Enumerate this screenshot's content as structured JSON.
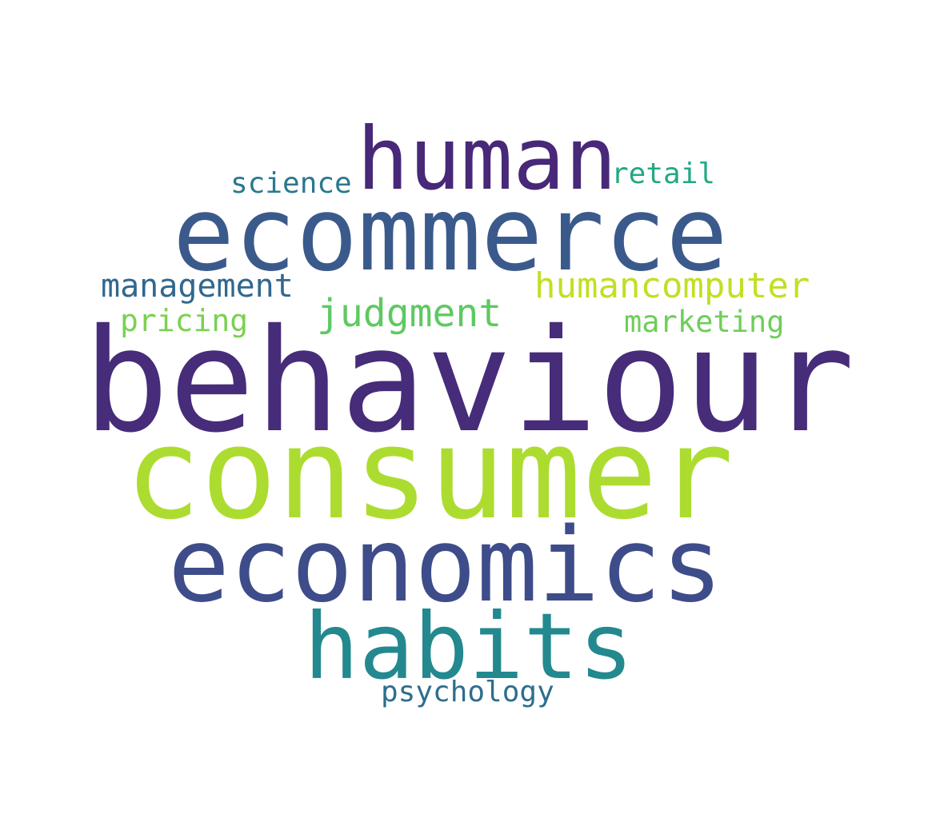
{
  "words": [
    {
      "key": "behaviour",
      "text": "behaviour",
      "color": "#472c7a"
    },
    {
      "key": "consumer",
      "text": "consumer",
      "color": "#addc30"
    },
    {
      "key": "ecommerce",
      "text": "ecommerce",
      "color": "#3b5a8c"
    },
    {
      "key": "economics",
      "text": "economics",
      "color": "#3e4c8a"
    },
    {
      "key": "human",
      "text": "human",
      "color": "#482878"
    },
    {
      "key": "habits",
      "text": "habits",
      "color": "#23898e"
    },
    {
      "key": "judgment",
      "text": "judgment",
      "color": "#5ec962"
    },
    {
      "key": "humancomputer",
      "text": "humancomputer",
      "color": "#c2df23"
    },
    {
      "key": "management",
      "text": "management",
      "color": "#31688e"
    },
    {
      "key": "pricing",
      "text": "pricing",
      "color": "#7ad151"
    },
    {
      "key": "marketing",
      "text": "marketing",
      "color": "#6ece58"
    },
    {
      "key": "science",
      "text": "science",
      "color": "#2a788e"
    },
    {
      "key": "retail",
      "text": "retail",
      "color": "#22a884"
    },
    {
      "key": "psychology",
      "text": "psychology",
      "color": "#2d6e8e"
    }
  ]
}
